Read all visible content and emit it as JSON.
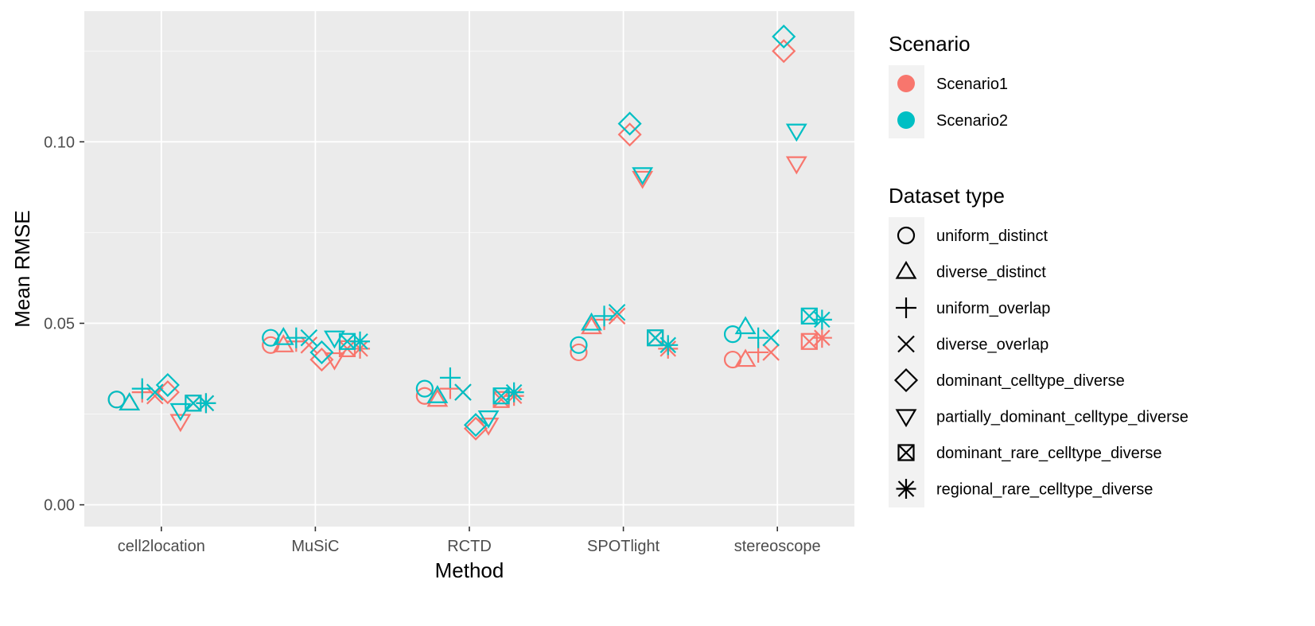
{
  "chart_data": {
    "type": "scatter",
    "xlabel": "Method",
    "ylabel": "Mean RMSE",
    "categories": [
      "cell2location",
      "MuSiC",
      "RCTD",
      "SPOTlight",
      "stereoscope"
    ],
    "y_ticks": [
      "0.00",
      "0.05",
      "0.10"
    ],
    "ylim": [
      -0.006,
      0.136
    ],
    "grid": true,
    "legend_position": "right",
    "color_legend": {
      "title": "Scenario",
      "entries": [
        {
          "name": "Scenario1",
          "color": "#F8766D"
        },
        {
          "name": "Scenario2",
          "color": "#00BFC4"
        }
      ]
    },
    "shape_legend": {
      "title": "Dataset type",
      "entries": [
        {
          "name": "uniform_distinct",
          "shape": "circle"
        },
        {
          "name": "diverse_distinct",
          "shape": "triangle"
        },
        {
          "name": "uniform_overlap",
          "shape": "plus"
        },
        {
          "name": "diverse_overlap",
          "shape": "cross"
        },
        {
          "name": "dominant_celltype_diverse",
          "shape": "diamond"
        },
        {
          "name": "partially_dominant_celltype_diverse",
          "shape": "triangle-down"
        },
        {
          "name": "dominant_rare_celltype_diverse",
          "shape": "square-cross"
        },
        {
          "name": "regional_rare_celltype_diverse",
          "shape": "asterisk"
        }
      ]
    },
    "series": [
      {
        "name": "Scenario1",
        "values": {
          "cell2location": [
            0.029,
            0.028,
            0.031,
            0.03,
            0.031,
            0.023,
            0.028,
            0.028
          ],
          "MuSiC": [
            0.044,
            0.044,
            0.045,
            0.044,
            0.04,
            0.04,
            0.043,
            0.043
          ],
          "RCTD": [
            0.03,
            0.029,
            0.032,
            0.031,
            0.021,
            0.022,
            0.029,
            0.03
          ],
          "SPOTlight": [
            0.042,
            0.049,
            0.051,
            0.052,
            0.102,
            0.09,
            0.046,
            0.043
          ],
          "stereoscope": [
            0.04,
            0.04,
            0.042,
            0.042,
            0.125,
            0.094,
            0.045,
            0.046
          ]
        }
      },
      {
        "name": "Scenario2",
        "values": {
          "cell2location": [
            0.029,
            0.028,
            0.032,
            0.031,
            0.033,
            0.026,
            0.028,
            0.028
          ],
          "MuSiC": [
            0.046,
            0.046,
            0.046,
            0.046,
            0.042,
            0.046,
            0.045,
            0.045
          ],
          "RCTD": [
            0.032,
            0.03,
            0.035,
            0.031,
            0.022,
            0.024,
            0.03,
            0.031
          ],
          "SPOTlight": [
            0.044,
            0.05,
            0.052,
            0.053,
            0.105,
            0.091,
            0.046,
            0.044
          ],
          "stereoscope": [
            0.047,
            0.049,
            0.046,
            0.046,
            0.129,
            0.103,
            0.052,
            0.051
          ]
        }
      }
    ]
  }
}
